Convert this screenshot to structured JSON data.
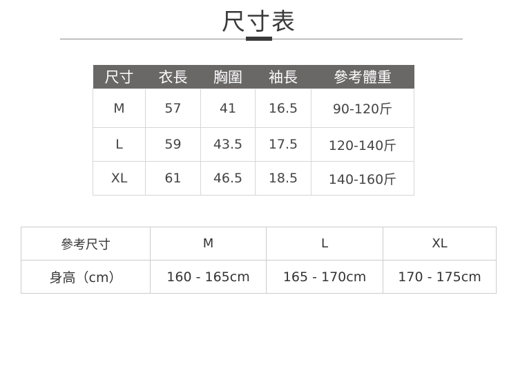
{
  "title": "尺寸表",
  "size_table": {
    "headers": [
      "尺寸",
      "衣長",
      "胸圍",
      "袖長",
      "參考體重"
    ],
    "rows": [
      [
        "M",
        "57",
        "41",
        "16.5",
        "90-120斤"
      ],
      [
        "L",
        "59",
        "43.5",
        "17.5",
        "120-140斤"
      ],
      [
        "XL",
        "61",
        "46.5",
        "18.5",
        "140-160斤"
      ]
    ]
  },
  "height_table": {
    "rows": [
      [
        "參考尺寸",
        "M",
        "L",
        "XL"
      ],
      [
        "身高（cm）",
        "160 - 165cm",
        "165 - 170cm",
        "170 - 175cm"
      ]
    ]
  },
  "colors": {
    "header_bg": "#6a6767",
    "title": "#3a3a3a"
  }
}
